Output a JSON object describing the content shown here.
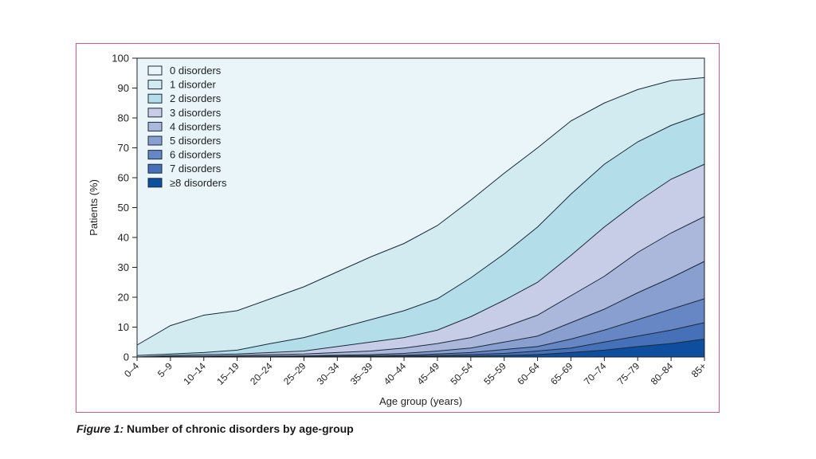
{
  "caption": {
    "label": "Figure 1:",
    "text": "Number of chronic disorders by age-group"
  },
  "chart_data": {
    "type": "area",
    "stacking": "cumulative-percentage",
    "xlabel": "Age group (years)",
    "ylabel": "Patients (%)",
    "ylim": [
      0,
      100
    ],
    "yticks": [
      0,
      10,
      20,
      30,
      40,
      50,
      60,
      70,
      80,
      90,
      100
    ],
    "grid": false,
    "legend_placement": "top-left",
    "categories": [
      "0–4",
      "5–9",
      "10–14",
      "15–19",
      "20–24",
      "25–29",
      "30–34",
      "35–39",
      "40–44",
      "45–49",
      "50–54",
      "55–59",
      "60–64",
      "65–69",
      "70–74",
      "75–79",
      "80–84",
      "85+"
    ],
    "series": [
      {
        "name": "0 disorders",
        "color": "#e9f5f8",
        "upper": [
          100,
          100,
          100,
          100,
          100,
          100,
          100,
          100,
          100,
          100,
          100,
          100,
          100,
          100,
          100,
          100,
          100,
          100
        ]
      },
      {
        "name": "1 disorder",
        "color": "#d1ebf1",
        "upper": [
          4,
          10.5,
          14,
          15.5,
          19.5,
          23.5,
          28.5,
          33.5,
          38,
          44,
          52.5,
          61.5,
          70,
          79,
          85,
          89.5,
          92.5,
          93.5
        ]
      },
      {
        "name": "2 disorders",
        "color": "#b2dde9",
        "upper": [
          0.5,
          1,
          1.5,
          2.3,
          4.5,
          6.5,
          9.5,
          12.5,
          15.5,
          19.5,
          26.5,
          34.5,
          43.5,
          54.5,
          64.5,
          72,
          77.5,
          81.5
        ]
      },
      {
        "name": "3 disorders",
        "color": "#c8cde7",
        "upper": [
          0,
          0.5,
          0.8,
          1,
          1.5,
          2,
          3.5,
          5,
          6.5,
          9,
          13.5,
          19,
          25,
          34,
          43.5,
          52,
          59.5,
          64.5
        ]
      },
      {
        "name": "4 disorders",
        "color": "#abb8dc",
        "upper": [
          0,
          0.2,
          0.3,
          0.5,
          0.8,
          1,
          1.5,
          2,
          3,
          4.5,
          6.5,
          10,
          14,
          20.5,
          27,
          35,
          41.5,
          47
        ]
      },
      {
        "name": "5 disorders",
        "color": "#889fd0",
        "upper": [
          0,
          0,
          0.1,
          0.2,
          0.3,
          0.4,
          0.6,
          0.8,
          1.2,
          2,
          3,
          5,
          7,
          11.5,
          16,
          21.5,
          26.5,
          32
        ]
      },
      {
        "name": "6 disorders",
        "color": "#6786c4",
        "upper": [
          0,
          0,
          0,
          0.1,
          0.1,
          0.2,
          0.3,
          0.4,
          0.6,
          1,
          1.5,
          2.5,
          3.5,
          6,
          9,
          12.5,
          16,
          19.5
        ]
      },
      {
        "name": "7 disorders",
        "color": "#4670b8",
        "upper": [
          0,
          0,
          0,
          0,
          0,
          0.1,
          0.1,
          0.2,
          0.3,
          0.5,
          0.8,
          1.2,
          2,
          3,
          5,
          7,
          9,
          11.5
        ]
      },
      {
        "name": "≥8 disorders",
        "color": "#0d4f9e",
        "upper": [
          0,
          0,
          0,
          0,
          0,
          0,
          0,
          0.1,
          0.1,
          0.2,
          0.3,
          0.5,
          0.8,
          1.5,
          2.3,
          3.5,
          4.5,
          6
        ]
      }
    ]
  }
}
